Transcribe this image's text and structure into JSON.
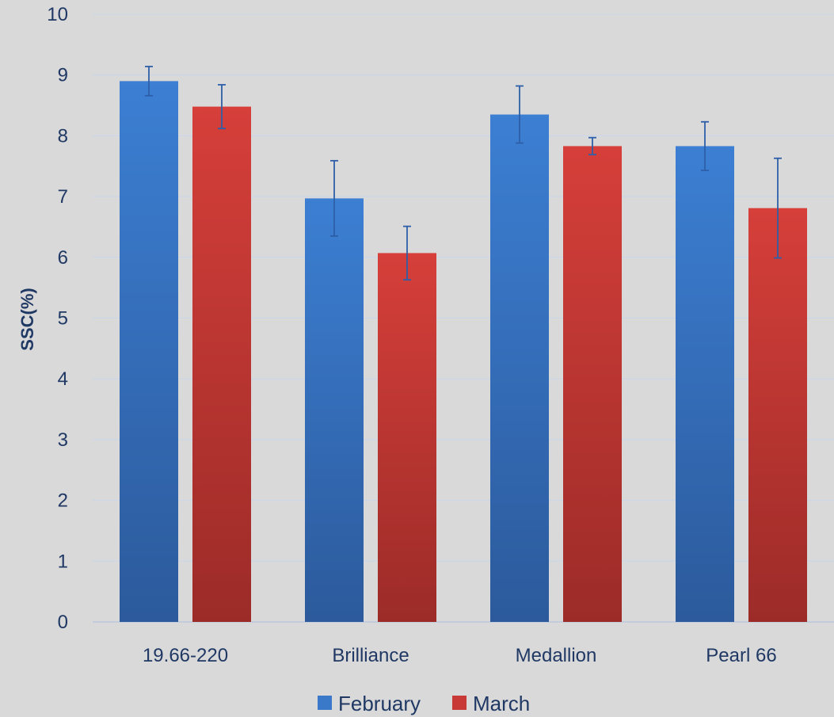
{
  "chart_data": {
    "type": "bar",
    "title": "",
    "xlabel": "",
    "ylabel": "SSC(%)",
    "ylim": [
      0,
      10
    ],
    "yticks": [
      0,
      1,
      2,
      3,
      4,
      5,
      6,
      7,
      8,
      9,
      10
    ],
    "grid": true,
    "legend_position": "bottom",
    "categories": [
      "19.66-220",
      "Brilliance",
      "Medallion",
      "Pearl 66"
    ],
    "series": [
      {
        "name": "February",
        "color": "#3a78c9",
        "values": [
          8.9,
          6.97,
          8.35,
          7.83
        ],
        "errors": [
          0.24,
          0.62,
          0.47,
          0.4
        ]
      },
      {
        "name": "March",
        "color": "#c83a35",
        "values": [
          8.48,
          6.07,
          7.83,
          6.81
        ],
        "errors": [
          0.36,
          0.44,
          0.14,
          0.82
        ]
      }
    ]
  }
}
